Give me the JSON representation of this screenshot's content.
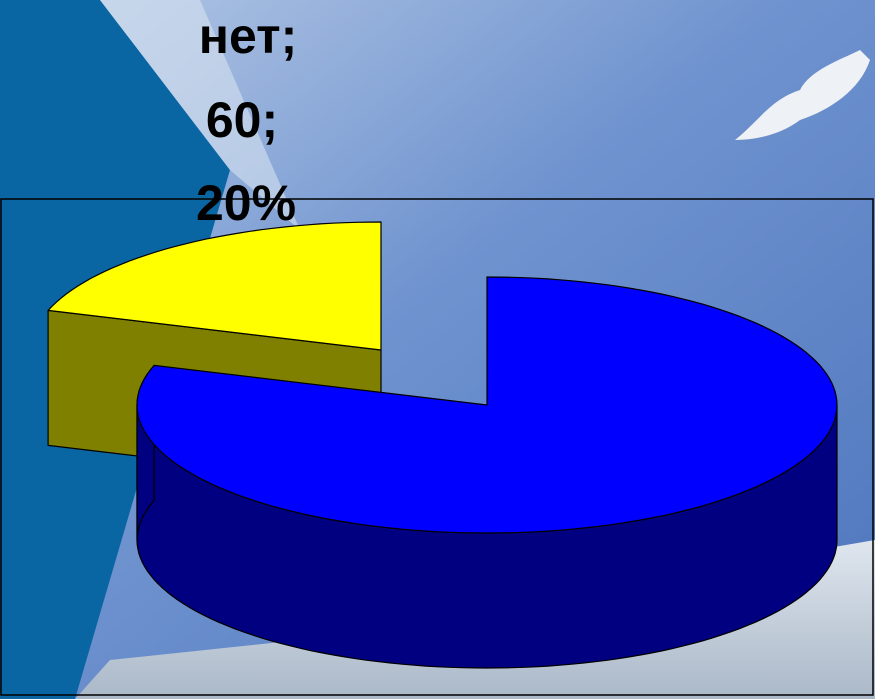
{
  "chart_data": {
    "type": "pie3d",
    "categories": [
      "нет;",
      null
    ],
    "values": [
      60,
      240
    ],
    "value_labels": [
      "60;",
      null
    ],
    "percent_labels": [
      "20%",
      null
    ],
    "colors": [
      "#ffff00",
      "#0000ff"
    ],
    "side_colors": [
      "#808000",
      "#000080"
    ],
    "exploded": [
      true,
      false
    ]
  }
}
